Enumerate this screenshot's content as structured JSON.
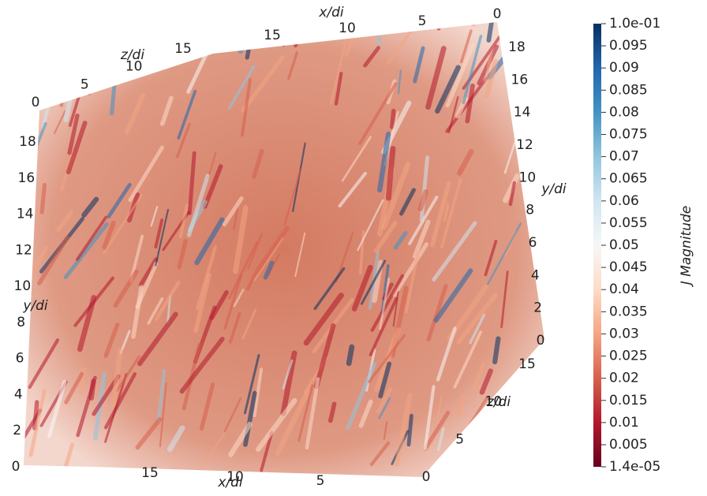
{
  "chart_data": {
    "type": "volume",
    "axes": [
      {
        "label": "x/di",
        "lim": [
          0,
          20
        ],
        "ticks": [
          15,
          10,
          5,
          0
        ]
      },
      {
        "label": "z/di",
        "lim": [
          0,
          15
        ],
        "ticks": [
          0,
          5,
          10,
          15
        ]
      },
      {
        "label": "y/di",
        "lim": [
          0,
          18
        ],
        "ticks": [
          18,
          16,
          14,
          12,
          10,
          8,
          6,
          4,
          2,
          0
        ]
      },
      {
        "label": "y/di",
        "lim": [
          0,
          18
        ],
        "ticks": [
          18,
          16,
          14,
          12,
          10,
          8,
          6,
          4,
          2,
          0
        ]
      },
      {
        "label": "x/di",
        "lim": [
          5,
          15
        ],
        "ticks": [
          15,
          10,
          5
        ]
      },
      {
        "label": "z/di",
        "lim": [
          0,
          15
        ],
        "ticks": [
          15,
          10,
          5,
          0
        ]
      }
    ],
    "colorbar": {
      "title": "J Magnitude",
      "lim": [
        1.4e-05,
        0.1
      ],
      "colors": [
        "#67001f",
        "#b2182b",
        "#d6604d",
        "#f4a582",
        "#fddbc7",
        "#f7f7f7",
        "#d1e5f0",
        "#92c5de",
        "#4393c3",
        "#2166ac",
        "#053061"
      ],
      "ticks": [
        {
          "value": 0.1,
          "label": "1.0e-01"
        },
        0.095,
        0.09,
        0.085,
        0.08,
        0.075,
        0.07,
        0.065,
        0.06,
        0.055,
        0.05,
        0.045,
        0.04,
        0.035,
        0.03,
        0.025,
        0.02,
        0.015,
        0.01,
        0.005,
        {
          "value": 1.4e-05,
          "label": "1.4e-05"
        }
      ]
    }
  }
}
